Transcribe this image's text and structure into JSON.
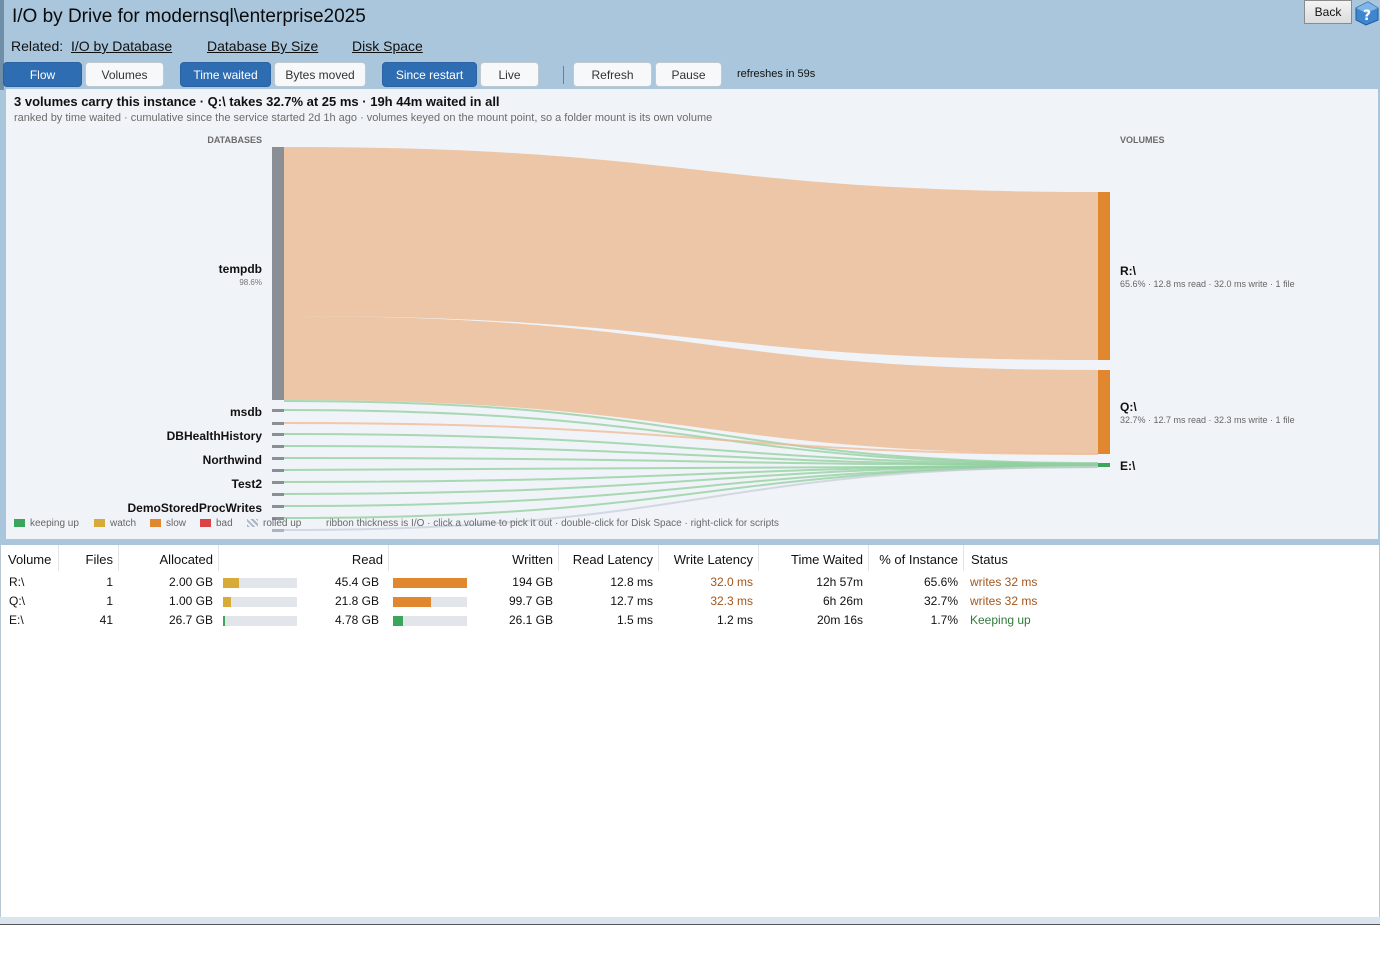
{
  "title": "I/O by Drive for modernsql\\enterprise2025",
  "back_label": "Back",
  "related": {
    "label": "Related:",
    "links": [
      "I/O by Database",
      "Database By Size",
      "Disk Space"
    ]
  },
  "toolbar": {
    "view_buttons": [
      "Flow",
      "Volumes"
    ],
    "metric_buttons": [
      "Time waited",
      "Bytes moved"
    ],
    "range_buttons": [
      "Since restart",
      "Live"
    ],
    "refresh_label": "Refresh",
    "pause_label": "Pause",
    "refresh_status": "refreshes in 59s"
  },
  "summary": {
    "headline": "3 volumes carry this instance   ·   Q:\\ takes 32.7% at 25 ms   ·   19h 44m waited in all",
    "subline": "ranked by time waited   ·   cumulative since the service started 2d 1h ago   ·   volumes keyed on the mount point, so a folder mount is its own volume"
  },
  "sankey": {
    "left_header": "DATABASES",
    "right_header": "VOLUMES",
    "databases": [
      {
        "name": "tempdb",
        "pct": "98.6%"
      },
      {
        "name": "msdb"
      },
      {
        "name": "DBHealthHistory"
      },
      {
        "name": "Northwind"
      },
      {
        "name": "Test2"
      },
      {
        "name": "DemoStoredProcWrites"
      }
    ],
    "volumes": [
      {
        "name": "R:\\",
        "detail": "65.6% · 12.8 ms read · 32.0 ms write · 1 file",
        "share": 0.656,
        "status": "slow"
      },
      {
        "name": "Q:\\",
        "detail": "32.7% · 12.7 ms read · 32.3 ms write · 1 file",
        "share": 0.327,
        "status": "slow"
      },
      {
        "name": "E:\\",
        "share": 0.017,
        "status": "keeping up"
      }
    ]
  },
  "legend": {
    "items": [
      {
        "label": "keeping up",
        "color": "#3ca55c"
      },
      {
        "label": "watch",
        "color": "#d8ab38"
      },
      {
        "label": "slow",
        "color": "#e0872f"
      },
      {
        "label": "bad",
        "color": "#d94545"
      },
      {
        "label": "rolled up",
        "color": "#aab4c2"
      }
    ],
    "hint": "ribbon thickness is I/O · click a volume to pick it out · double-click for Disk Space · right-click for scripts"
  },
  "colors": {
    "accent": "#2f6db3",
    "slow": "#e0872f",
    "ribbon_slow": "#ecc6a6",
    "keeping_up": "#3ca55c",
    "watch": "#d8ab38",
    "status_slow_text": "#a3561b",
    "status_ok_text": "#2f7a3b",
    "database_node": "#8a8f96"
  },
  "grid": {
    "columns": [
      "Volume",
      "Files",
      "Allocated",
      "Read",
      "Written",
      "Read Latency",
      "Write Latency",
      "Time Waited",
      "% of Instance",
      "Status"
    ],
    "rows": [
      {
        "volume": "R:\\",
        "files": "1",
        "allocated": "2.00 GB",
        "alloc_frac": 0.22,
        "alloc_color": "#d8ab38",
        "read": "45.4 GB",
        "read_frac": 1.0,
        "read_color": "#e0872f",
        "written": "194 GB",
        "read_latency": "12.8 ms",
        "write_latency": "32.0 ms",
        "write_warn": true,
        "time_waited": "12h 57m",
        "pct": "65.6%",
        "status": "writes 32 ms",
        "status_kind": "slow"
      },
      {
        "volume": "Q:\\",
        "files": "1",
        "allocated": "1.00 GB",
        "alloc_frac": 0.11,
        "alloc_color": "#d8ab38",
        "read": "21.8 GB",
        "read_frac": 0.51,
        "read_color": "#e0872f",
        "written": "99.7 GB",
        "read_latency": "12.7 ms",
        "write_latency": "32.3 ms",
        "write_warn": true,
        "time_waited": "6h 26m",
        "pct": "32.7%",
        "status": "writes 32 ms",
        "status_kind": "slow"
      },
      {
        "volume": "E:\\",
        "files": "41",
        "allocated": "26.7 GB",
        "alloc_frac": 0.02,
        "alloc_color": "#3ca55c",
        "read": "4.78 GB",
        "read_frac": 0.13,
        "read_color": "#3ca55c",
        "written": "26.1 GB",
        "read_latency": "1.5 ms",
        "write_latency": "1.2 ms",
        "write_warn": false,
        "time_waited": "20m 16s",
        "pct": "1.7%",
        "status": "Keeping up",
        "status_kind": "ok"
      }
    ]
  }
}
